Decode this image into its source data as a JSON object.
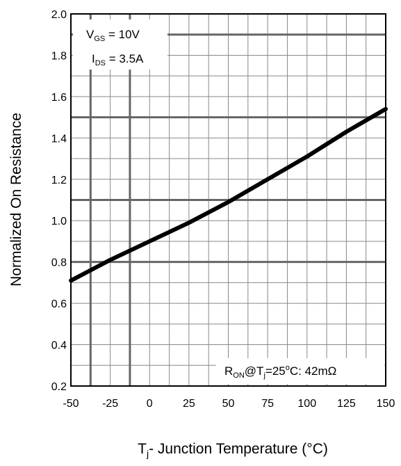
{
  "chart_data": {
    "type": "line",
    "title": "",
    "xlabel_main": "T",
    "xlabel_sub": "j",
    "xlabel_rest": "- Junction Temperature (°C)",
    "ylabel": "Normalized On Resistance",
    "xlim": [
      -50,
      150
    ],
    "ylim": [
      0.2,
      2.0
    ],
    "x_ticks": [
      "-50",
      "-25",
      "0",
      "25",
      "50",
      "75",
      "100",
      "125",
      "150"
    ],
    "y_ticks": [
      "0.2",
      "0.4",
      "0.6",
      "0.8",
      "1.0",
      "1.2",
      "1.4",
      "1.6",
      "1.8",
      "2.0"
    ],
    "grid": true,
    "series": [
      {
        "x": [
          -50,
          -25,
          0,
          25,
          50,
          75,
          100,
          125,
          150
        ],
        "y": [
          0.71,
          0.81,
          0.9,
          0.99,
          1.09,
          1.2,
          1.31,
          1.43,
          1.54
        ]
      }
    ],
    "annotations": {
      "top_left_line1": {
        "main": "V",
        "sub": "GS",
        "rest": " = 10V"
      },
      "top_left_line2": {
        "main": "I",
        "sub": "DS",
        "rest": " = 3.5A"
      },
      "bottom_right": {
        "p1": "R",
        "sub1": "ON",
        "p2": "@T",
        "sub2": "j",
        "p3": "=25",
        "sup": "o",
        "p4": "C: 42mΩ"
      }
    }
  },
  "colors": {
    "line": "#000000",
    "grid_major": "#666666",
    "grid_minor": "#888888",
    "frame": "#000000"
  }
}
